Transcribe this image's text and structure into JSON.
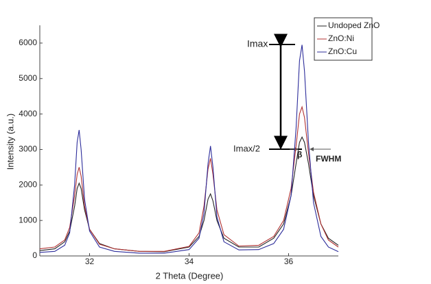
{
  "chart_data": {
    "type": "line",
    "x_label": "2 Theta (Degree)",
    "y_label": "Intensity (a.u.)",
    "xlim": [
      31,
      37
    ],
    "xticks": [
      32,
      34,
      36
    ],
    "ylim": [
      0,
      6500
    ],
    "yticks": [
      0,
      1000,
      2000,
      3000,
      4000,
      5000,
      6000
    ],
    "grid": false,
    "legend": "upper right",
    "x": [
      31.0,
      31.3,
      31.5,
      31.6,
      31.7,
      31.75,
      31.79,
      31.83,
      31.9,
      32.0,
      32.2,
      32.5,
      33.0,
      33.5,
      34.0,
      34.2,
      34.3,
      34.38,
      34.43,
      34.48,
      34.56,
      34.7,
      35.0,
      35.4,
      35.7,
      35.9,
      36.05,
      36.15,
      36.22,
      36.27,
      36.32,
      36.4,
      36.5,
      36.65,
      36.8,
      37.0
    ],
    "series": [
      {
        "name": "Undoped ZnO",
        "color": "#222222",
        "values": [
          150,
          200,
          400,
          700,
          1400,
          1900,
          2050,
          1900,
          1300,
          750,
          350,
          200,
          130,
          120,
          250,
          550,
          1000,
          1600,
          1750,
          1550,
          1000,
          500,
          250,
          250,
          500,
          900,
          1700,
          2600,
          3200,
          3350,
          3200,
          2600,
          1700,
          900,
          500,
          300
        ]
      },
      {
        "name": "ZnO:Ni",
        "color": "#b03030",
        "values": [
          200,
          250,
          450,
          800,
          1700,
          2300,
          2500,
          2250,
          1400,
          750,
          330,
          200,
          130,
          130,
          270,
          650,
          1400,
          2450,
          2750,
          2300,
          1300,
          600,
          280,
          300,
          550,
          1000,
          1900,
          3100,
          4000,
          4200,
          3900,
          2900,
          1800,
          900,
          450,
          250
        ]
      },
      {
        "name": "ZnO:Cu",
        "color": "#2b2b9a",
        "values": [
          100,
          130,
          300,
          650,
          2000,
          3200,
          3550,
          3000,
          1600,
          700,
          250,
          130,
          80,
          80,
          180,
          500,
          1200,
          2600,
          3100,
          2500,
          1100,
          400,
          170,
          180,
          350,
          750,
          1700,
          3600,
          5500,
          5950,
          5200,
          3200,
          1500,
          550,
          250,
          120
        ]
      }
    ],
    "annotations": [
      "Imax",
      "Imax/2",
      "β",
      "FWHM"
    ]
  }
}
